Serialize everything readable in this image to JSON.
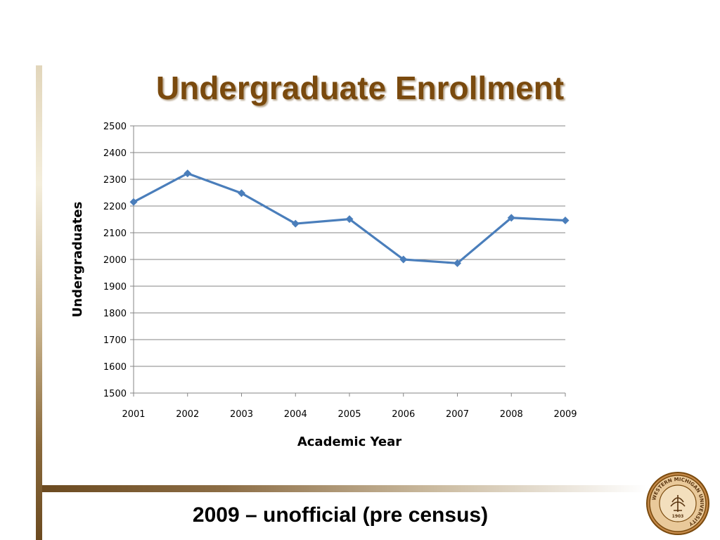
{
  "slide": {
    "footnote": "2009 – unofficial (pre census)",
    "seal_text": "WESTERN MICHIGAN UNIVERSITY",
    "seal_year": "1903"
  },
  "colors": {
    "title": "#7a4a0e",
    "series_line": "#4a7ebb",
    "gridline": "#868686"
  },
  "chart_data": {
    "type": "line",
    "title": "Undergraduate Enrollment",
    "xlabel": "Academic Year",
    "ylabel": "Undergraduates",
    "x": [
      "2001",
      "2002",
      "2003",
      "2004",
      "2005",
      "2006",
      "2007",
      "2008",
      "2009"
    ],
    "series": [
      {
        "values": [
          2215,
          2322,
          2248,
          2134,
          2151,
          2000,
          1986,
          2156,
          2146
        ]
      }
    ],
    "ylim": [
      1500,
      2500
    ],
    "yticks": [
      1500,
      1600,
      1700,
      1800,
      1900,
      2000,
      2100,
      2200,
      2300,
      2400,
      2500
    ],
    "grid": true,
    "legend": "none",
    "marker": "diamond"
  }
}
